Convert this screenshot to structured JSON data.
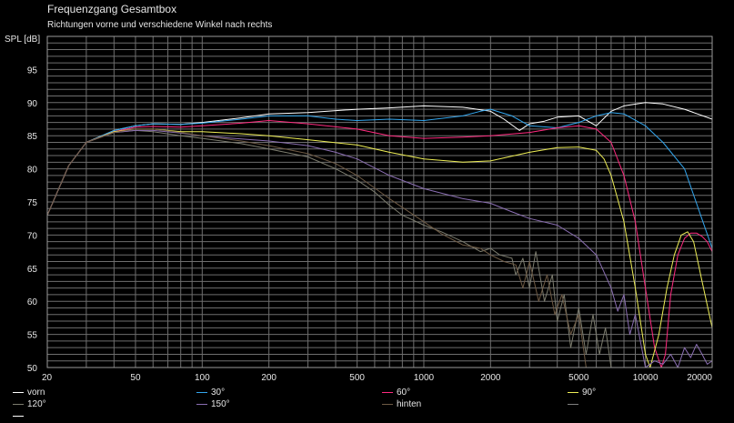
{
  "title": "Frequenzgang Gesamtbox",
  "subtitle": "Richtungen vorne und verschiedene Winkel nach rechts",
  "ylabel": "SPL [dB]",
  "colors": {
    "background": "#000000",
    "grid": "#6e6e6e",
    "text": "#e6e6e6"
  },
  "chart_data": {
    "type": "line",
    "title": "Frequenzgang Gesamtbox",
    "subtitle": "Richtungen vorne und verschiedene Winkel nach rechts",
    "xlabel": "",
    "ylabel": "SPL [dB]",
    "xscale": "log",
    "xlim": [
      20,
      20000
    ],
    "ylim": [
      50,
      100
    ],
    "grid": true,
    "legend_position": "bottom",
    "xticks": [
      20,
      50,
      100,
      200,
      500,
      1000,
      2000,
      5000,
      10000,
      20000
    ],
    "xtick_labels": [
      "20",
      "50",
      "100",
      "200",
      "500",
      "1000",
      "2000",
      "5000",
      "10000",
      "20000"
    ],
    "yticks": [
      50,
      55,
      60,
      65,
      70,
      75,
      80,
      85,
      90,
      95
    ],
    "series": [
      {
        "name": "vorn",
        "color": "#ffffff",
        "x": [
          20,
          25,
          30,
          40,
          50,
          60,
          80,
          100,
          150,
          200,
          300,
          500,
          700,
          1000,
          1500,
          2000,
          2300,
          2700,
          3000,
          3500,
          4000,
          5000,
          6000,
          7000,
          8000,
          10000,
          12000,
          15000,
          20000
        ],
        "y": [
          73,
          80.5,
          84,
          85.8,
          86.5,
          86.8,
          86.7,
          87,
          87.7,
          88.3,
          88.5,
          89,
          89.2,
          89.5,
          89.3,
          88.7,
          87.5,
          85.8,
          86.8,
          87.2,
          87.8,
          88,
          86.5,
          88.7,
          89.5,
          90,
          89.8,
          89,
          87.5
        ]
      },
      {
        "name": "30°",
        "color": "#33a6ee",
        "x": [
          20,
          25,
          30,
          40,
          50,
          60,
          80,
          100,
          150,
          200,
          300,
          400,
          500,
          700,
          1000,
          1500,
          1800,
          2000,
          2500,
          3000,
          4000,
          5000,
          6000,
          7000,
          8000,
          10000,
          12000,
          15000,
          20000
        ],
        "y": [
          73,
          80.5,
          84,
          85.8,
          86.5,
          86.8,
          86.7,
          86.9,
          87.5,
          88,
          88,
          87.5,
          87.3,
          87.5,
          87.3,
          88,
          88.7,
          89,
          88,
          86.5,
          86.2,
          87,
          88,
          88.5,
          88.3,
          86.5,
          84,
          80,
          68
        ]
      },
      {
        "name": "60°",
        "color": "#ff2a7f",
        "x": [
          20,
          25,
          30,
          40,
          50,
          60,
          80,
          100,
          150,
          200,
          300,
          500,
          700,
          1000,
          1500,
          2000,
          3000,
          4000,
          5000,
          6000,
          7000,
          8000,
          9000,
          10000,
          11000,
          11800,
          12300,
          13000,
          14000,
          15000,
          16000,
          17000,
          18000,
          19000,
          20000
        ],
        "y": [
          73,
          80.5,
          84,
          85.6,
          86.3,
          86.4,
          86.3,
          86.5,
          86.9,
          87.3,
          86.8,
          86,
          85,
          84.6,
          84.8,
          85,
          85.5,
          86.2,
          86.5,
          86,
          84,
          79,
          72,
          62,
          53,
          50,
          52,
          61,
          67,
          69.5,
          70.3,
          70.3,
          69.8,
          69,
          67.5
        ]
      },
      {
        "name": "90°",
        "color": "#eeee55",
        "x": [
          20,
          25,
          30,
          40,
          50,
          60,
          80,
          100,
          150,
          200,
          300,
          500,
          700,
          1000,
          1500,
          2000,
          3000,
          4000,
          5000,
          6000,
          6500,
          7000,
          8000,
          9000,
          10000,
          10500,
          11500,
          12500,
          13500,
          14500,
          15500,
          16500,
          18000,
          20000
        ],
        "y": [
          73,
          80.5,
          84,
          85.6,
          86,
          86,
          85.6,
          85.6,
          85.3,
          85,
          84.4,
          83.6,
          82.5,
          81.5,
          81,
          81.2,
          82.5,
          83.2,
          83.3,
          82.8,
          81.5,
          79,
          72,
          62,
          52,
          50,
          55,
          62,
          67,
          70,
          70.5,
          69,
          63,
          56
        ]
      },
      {
        "name": "120°",
        "color": "#7c7c6e",
        "x": [
          20,
          25,
          30,
          40,
          50,
          60,
          80,
          100,
          150,
          200,
          300,
          400,
          500,
          600,
          700,
          800,
          1000,
          1200,
          1500,
          1800,
          2000,
          2200,
          2500,
          2600,
          2800,
          3000,
          3200,
          3500,
          3800,
          4000,
          4300,
          4600,
          5000,
          5400,
          5800,
          6200,
          6600,
          7000
        ],
        "y": [
          73,
          80.5,
          84,
          85.5,
          85.8,
          85.6,
          85,
          84.6,
          83.8,
          83,
          81.8,
          80,
          78.3,
          76.5,
          74.5,
          73,
          71.5,
          70.5,
          69,
          67.5,
          68,
          67,
          66.5,
          64,
          66.5,
          62,
          67.5,
          60,
          64,
          57,
          61,
          53,
          59,
          52,
          58,
          52,
          56,
          50
        ]
      },
      {
        "name": "150°",
        "color": "#8a6eb2",
        "x": [
          20,
          25,
          30,
          40,
          50,
          60,
          80,
          100,
          150,
          200,
          300,
          400,
          500,
          700,
          1000,
          1500,
          2000,
          2500,
          3000,
          4000,
          5000,
          6000,
          7000,
          7500,
          8000,
          8500,
          9000,
          10000,
          11000,
          12000,
          13000,
          14000,
          15000,
          16000,
          17000,
          18000,
          19000,
          20000
        ],
        "y": [
          73,
          80.5,
          84,
          85.5,
          85.8,
          85.8,
          85.4,
          85,
          84.5,
          84.2,
          83.5,
          82.5,
          81.5,
          79,
          77,
          75.5,
          74.8,
          73.5,
          72.5,
          71.5,
          69.5,
          67,
          62,
          58.5,
          61,
          55,
          58,
          50,
          51,
          50.5,
          52,
          50,
          53,
          51.5,
          53.5,
          52,
          50.5,
          51
        ]
      },
      {
        "name": "hinten",
        "color": "#6e5a44",
        "x": [
          20,
          25,
          30,
          40,
          50,
          60,
          80,
          100,
          150,
          200,
          300,
          400,
          500,
          700,
          1000,
          1200,
          1500,
          1800,
          2000,
          2300,
          2600,
          2800,
          3000,
          3300,
          3600,
          3900,
          4200,
          4600,
          5000,
          5400
        ],
        "y": [
          73,
          80.5,
          84,
          85.5,
          86,
          86,
          85.5,
          85,
          84.2,
          83.5,
          82.3,
          80.8,
          79,
          75.5,
          72,
          70.2,
          68.5,
          68,
          67,
          66,
          65.5,
          62,
          66,
          60,
          64,
          58,
          61,
          55,
          58,
          50
        ]
      },
      {
        "name": "",
        "color": "#7f7f7f",
        "x": [],
        "y": []
      },
      {
        "name": "",
        "color": "#ffffff",
        "x": [],
        "y": []
      }
    ]
  }
}
